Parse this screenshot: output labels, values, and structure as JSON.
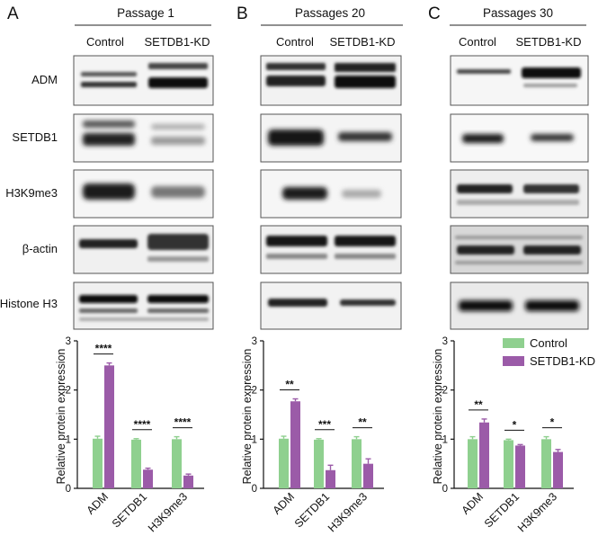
{
  "panels": [
    {
      "letter": "A",
      "passage": "Passage 1"
    },
    {
      "letter": "B",
      "passage": "Passages 20"
    },
    {
      "letter": "C",
      "passage": "Passages 30"
    }
  ],
  "lane_labels": [
    "Control",
    "SETDB1-KD"
  ],
  "proteins": [
    "ADM",
    "SETDB1",
    "H3K9me3",
    "β-actin",
    "Histone H3"
  ],
  "legend": [
    {
      "name": "Control",
      "color": "#8fd08f"
    },
    {
      "name": "SETDB1-KD",
      "color": "#9b5ba8"
    }
  ],
  "chart_data": [
    {
      "type": "bar",
      "panel": "A",
      "categories": [
        "ADM",
        "SETDB1",
        "H3K9me3"
      ],
      "ylabel": "Relative protein expression",
      "ylim": [
        0,
        3
      ],
      "yticks": [
        "0",
        "1",
        "2",
        "3"
      ],
      "series": [
        {
          "name": "Control",
          "values": [
            1.01,
            0.99,
            1.0
          ],
          "errors": [
            0.05,
            0.02,
            0.05
          ]
        },
        {
          "name": "SETDB1-KD",
          "values": [
            2.5,
            0.38,
            0.26
          ],
          "errors": [
            0.05,
            0.03,
            0.03
          ]
        }
      ],
      "significance": [
        "****",
        "****",
        "****"
      ]
    },
    {
      "type": "bar",
      "panel": "B",
      "categories": [
        "ADM",
        "SETDB1",
        "H3K9me3"
      ],
      "ylabel": "Relative protein expression",
      "ylim": [
        0,
        3
      ],
      "yticks": [
        "0",
        "1",
        "2",
        "3"
      ],
      "series": [
        {
          "name": "Control",
          "values": [
            1.01,
            0.99,
            1.0
          ],
          "errors": [
            0.05,
            0.02,
            0.05
          ]
        },
        {
          "name": "SETDB1-KD",
          "values": [
            1.77,
            0.37,
            0.5
          ],
          "errors": [
            0.05,
            0.1,
            0.1
          ]
        }
      ],
      "significance": [
        "**",
        "***",
        "**"
      ]
    },
    {
      "type": "bar",
      "panel": "C",
      "categories": [
        "ADM",
        "SETDB1",
        "H3K9me3"
      ],
      "ylabel": "Relative protein expression",
      "ylim": [
        0,
        3
      ],
      "yticks": [
        "0",
        "1",
        "2",
        "3"
      ],
      "series": [
        {
          "name": "Control",
          "values": [
            1.0,
            0.98,
            1.0
          ],
          "errors": [
            0.05,
            0.02,
            0.05
          ]
        },
        {
          "name": "SETDB1-KD",
          "values": [
            1.34,
            0.87,
            0.74
          ],
          "errors": [
            0.07,
            0.02,
            0.05
          ]
        }
      ],
      "significance": [
        "**",
        "*",
        "*"
      ]
    }
  ]
}
